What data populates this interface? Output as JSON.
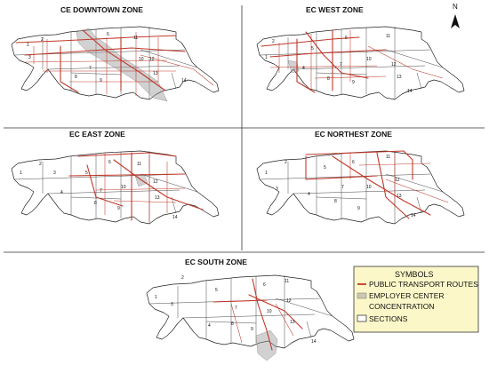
{
  "zones": [
    {
      "id": "downtown",
      "title": "CE DOWNTOWN ZONE"
    },
    {
      "id": "west",
      "title": "EC WEST ZONE"
    },
    {
      "id": "east",
      "title": "EC EAST ZONE"
    },
    {
      "id": "northeast",
      "title": "EC NORTHEST ZONE"
    },
    {
      "id": "south",
      "title": "EC SOUTH ZONE"
    }
  ],
  "section_labels": [
    "1",
    "2",
    "3",
    "4",
    "5",
    "6",
    "7",
    "8",
    "9",
    "10",
    "11",
    "12",
    "13",
    "14"
  ],
  "north_arrow": {
    "label": "N",
    "icon": "north-arrow-icon"
  },
  "legend": {
    "title": "SYMBOLS",
    "items": [
      {
        "label": "PUBLIC TRANSPORT ROUTES",
        "icon": "red-line-icon"
      },
      {
        "label": "EMPLOYER CENTER",
        "icon": "gray-area-icon"
      },
      {
        "label": "CONCENTRATION",
        "icon": ""
      },
      {
        "label": "SECTIONS",
        "icon": "white-box-icon"
      }
    ]
  },
  "colors": {
    "route": "#c0392b",
    "employer_center": "#9a9a9a",
    "legend_bg": "#fbf7c8"
  }
}
